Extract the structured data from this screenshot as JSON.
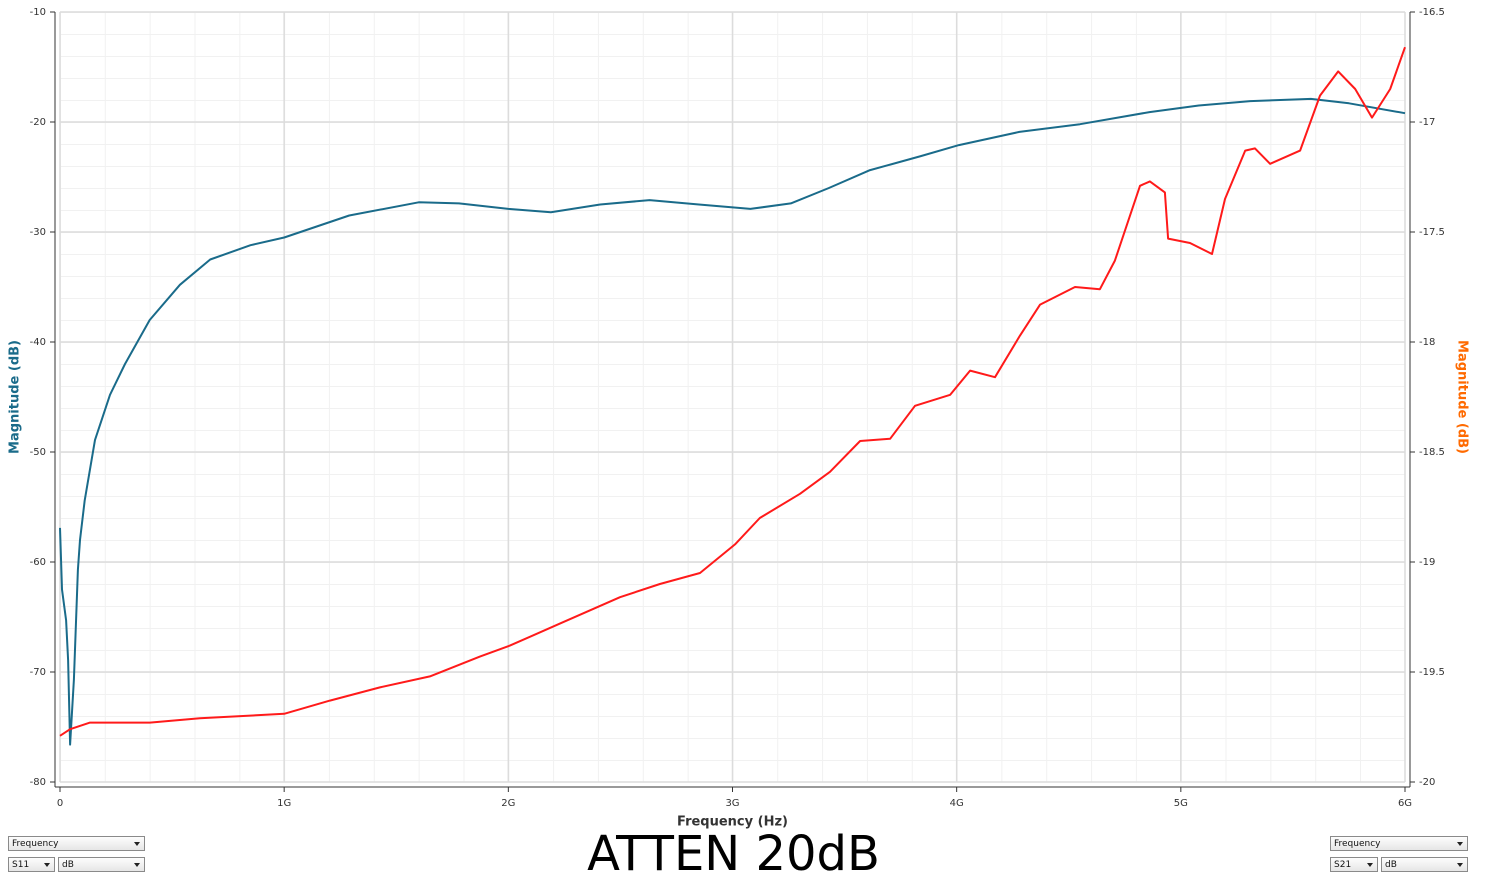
{
  "chart_data": {
    "type": "line",
    "x_label": "Frequency (Hz)",
    "y_label": "Magnitude (dB)",
    "y2_label": "Magnitude (dB)",
    "annotation": "ATTEN 20dB",
    "grid": true,
    "xlim": [
      0,
      6000000000
    ],
    "xticks": [
      0,
      {
        "value": 1000000000,
        "label": "1G"
      },
      {
        "value": 2000000000,
        "label": "2G"
      },
      {
        "value": 3000000000,
        "label": "3G"
      },
      {
        "value": 4000000000,
        "label": "4G"
      },
      {
        "value": 5000000000,
        "label": "5G"
      },
      {
        "value": 6000000000,
        "label": "6G"
      }
    ],
    "ylim": [
      -80,
      -10
    ],
    "yticks": [
      -10,
      -20,
      -30,
      -40,
      -50,
      -60,
      -70,
      -80
    ],
    "y2lim": [
      -20,
      -16.5
    ],
    "y2ticks": [
      -16.5,
      -17,
      -17.5,
      -18,
      -18.5,
      -19,
      -19.5,
      -20
    ],
    "y_label_color": "#1a6b8a",
    "y2_label_color": "#ff6a00",
    "series": [
      {
        "color": "#1a6b8a",
        "axis": "y",
        "x": [
          0,
          9000000,
          27000000,
          36000000,
          45000000,
          62000000,
          80000000,
          89000000,
          110000000,
          156000000,
          223000000,
          290000000,
          400000000,
          535000000,
          670000000,
          850000000,
          1000000000,
          1290000000,
          1600000000,
          1780000000,
          2000000000,
          2190000000,
          2410000000,
          2630000000,
          2850000000,
          3080000000,
          3260000000,
          3430000000,
          3610000000,
          3840000000,
          4010000000,
          4280000000,
          4550000000,
          4860000000,
          5080000000,
          5310000000,
          5580000000,
          5750000000,
          6000000000
        ],
        "values": [
          -56.9,
          -62.5,
          -65.3,
          -68.9,
          -76.6,
          -70.7,
          -60.7,
          -58,
          -54.4,
          -48.9,
          -44.8,
          -42,
          -38,
          -34.8,
          -32.5,
          -31.2,
          -30.5,
          -28.5,
          -27.3,
          -27.4,
          -27.9,
          -28.2,
          -27.5,
          -27.1,
          -27.5,
          -27.9,
          -27.4,
          -26,
          -24.4,
          -23.1,
          -22.1,
          -20.9,
          -20.2,
          -19.1,
          -18.5,
          -18.1,
          -17.9,
          -18.3,
          -19.2
        ]
      },
      {
        "color": "#ff1a1a",
        "axis": "y2",
        "x": [
          0,
          45000000,
          134000000,
          401000000,
          624000000,
          1000000000,
          1204000000,
          1427000000,
          1650000000,
          1873000000,
          2007000000,
          2230000000,
          2498000000,
          2676000000,
          2855000000,
          3011000000,
          3122000000,
          3301000000,
          3435000000,
          3569000000,
          3703000000,
          3814000000,
          3971000000,
          4060000000,
          4171000000,
          4283000000,
          4372000000,
          4528000000,
          4639000000,
          4706000000,
          4818000000,
          4862000000,
          4929000000,
          4943000000,
          5041000000,
          5139000000,
          5197000000,
          5287000000,
          5331000000,
          5398000000,
          5532000000,
          5621000000,
          5702000000,
          5778000000,
          5853000000,
          5934000000,
          6000000000
        ],
        "values": [
          -19.79,
          -19.76,
          -19.73,
          -19.73,
          -19.71,
          -19.69,
          -19.63,
          -19.57,
          -19.52,
          -19.43,
          -19.38,
          -19.28,
          -19.16,
          -19.1,
          -19.05,
          -18.92,
          -18.8,
          -18.69,
          -18.59,
          -18.45,
          -18.44,
          -18.29,
          -18.24,
          -18.13,
          -18.16,
          -17.97,
          -17.83,
          -17.75,
          -17.76,
          -17.63,
          -17.29,
          -17.27,
          -17.32,
          -17.53,
          -17.55,
          -17.6,
          -17.35,
          -17.13,
          -17.12,
          -17.19,
          -17.13,
          -16.88,
          -16.77,
          -16.85,
          -16.98,
          -16.85,
          -16.66
        ]
      }
    ]
  },
  "controls": {
    "left_x": "Frequency",
    "left_trace": "S11",
    "left_format": "dB",
    "right_x": "Frequency",
    "right_trace": "S21",
    "right_format": "dB"
  }
}
